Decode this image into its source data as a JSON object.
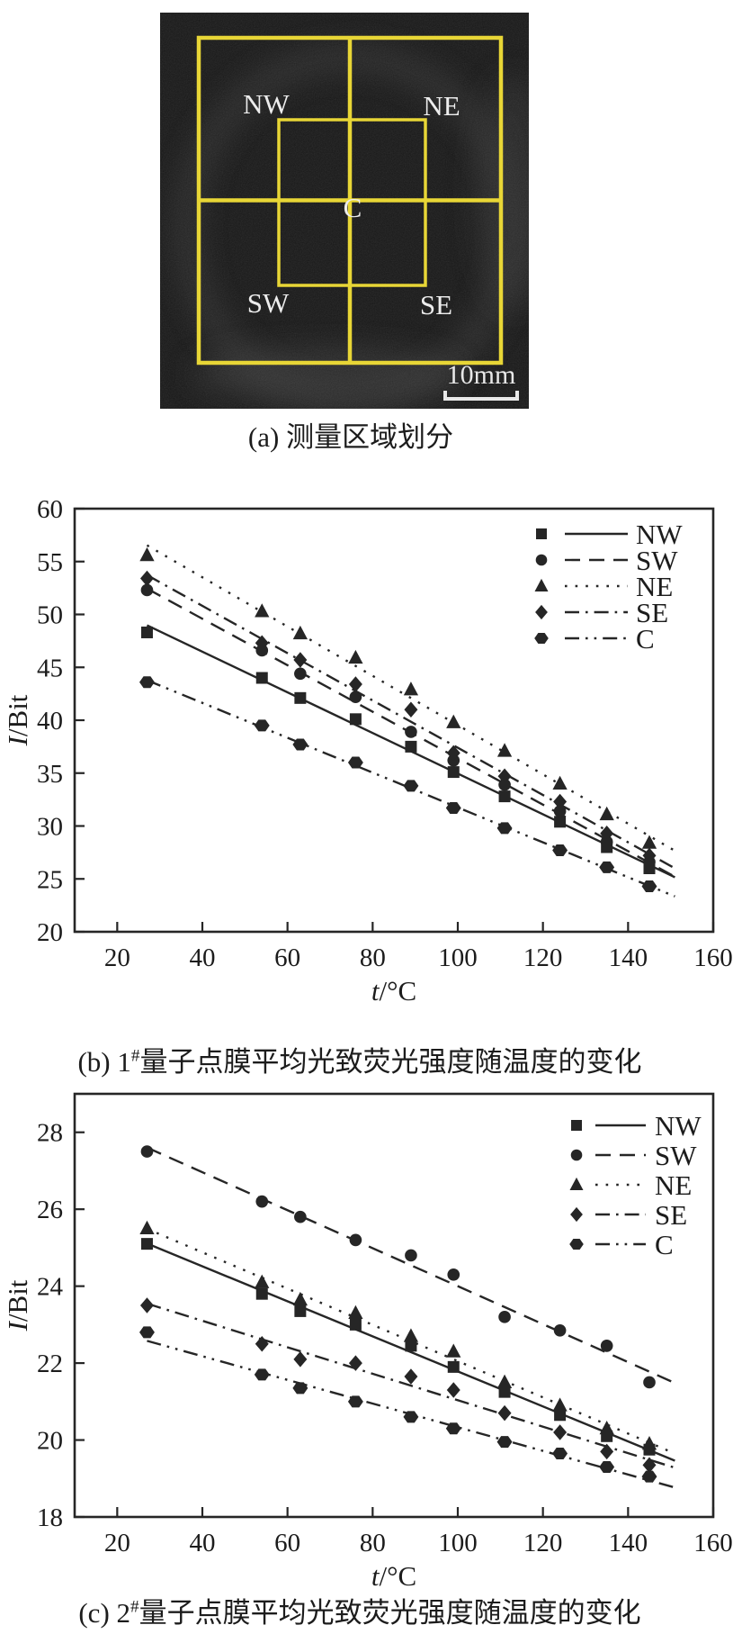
{
  "figure": {
    "panel_a": {
      "caption": "(a) 测量区域划分",
      "regions": [
        {
          "label": "NW"
        },
        {
          "label": "NE"
        },
        {
          "label": "C"
        },
        {
          "label": "SW"
        },
        {
          "label": "SE"
        }
      ],
      "scale_bar_label": "10mm",
      "grid_color": "#e8d636",
      "label_color": "#ededed"
    },
    "panel_b": {
      "caption_prefix": "(b) 1",
      "caption_sup": "#",
      "caption_rest": "量子点膜平均光致荧光强度随温度的变化"
    },
    "panel_c": {
      "caption_prefix": "(c) 2",
      "caption_sup": "#",
      "caption_rest": "量子点膜平均光致荧光强度随温度的变化"
    }
  },
  "chart_data": [
    {
      "id": "b",
      "type": "scatter",
      "title": "",
      "xlabel": "t/°C",
      "ylabel": "I/Bit",
      "xlim": [
        10,
        160
      ],
      "ylim": [
        20,
        60
      ],
      "xticks": [
        20,
        40,
        60,
        80,
        100,
        120,
        140,
        160
      ],
      "yticks": [
        20,
        25,
        30,
        35,
        40,
        45,
        50,
        55,
        60
      ],
      "grid": false,
      "fit_lines": true,
      "legend_position": "top-right",
      "x": [
        27,
        54,
        63,
        76,
        89,
        99,
        111,
        124,
        135,
        145
      ],
      "series": [
        {
          "name": "NW",
          "marker": "square",
          "line": "solid",
          "values": [
            48.3,
            44.0,
            42.1,
            40.1,
            37.5,
            35.1,
            32.8,
            30.4,
            28.0,
            26.0
          ]
        },
        {
          "name": "SW",
          "marker": "circle",
          "line": "dashed",
          "values": [
            52.3,
            46.6,
            44.4,
            42.2,
            38.9,
            36.2,
            33.9,
            31.4,
            28.5,
            26.6
          ]
        },
        {
          "name": "NE",
          "marker": "triangle",
          "line": "dotted",
          "values": [
            55.6,
            50.3,
            48.2,
            45.9,
            42.9,
            39.8,
            37.1,
            34.0,
            31.1,
            28.4
          ]
        },
        {
          "name": "SE",
          "marker": "diamond",
          "line": "dashdot",
          "values": [
            53.4,
            47.3,
            45.7,
            43.4,
            41.0,
            36.9,
            34.7,
            32.3,
            29.3,
            27.2
          ]
        },
        {
          "name": "C",
          "marker": "hexagon",
          "line": "dashdotdot",
          "values": [
            43.6,
            39.5,
            37.7,
            36.0,
            33.8,
            31.7,
            29.8,
            27.7,
            26.1,
            24.3
          ]
        }
      ]
    },
    {
      "id": "c",
      "type": "scatter",
      "title": "",
      "xlabel": "t/°C",
      "ylabel": "I/Bit",
      "xlim": [
        10,
        160
      ],
      "ylim": [
        18,
        29
      ],
      "xticks": [
        20,
        40,
        60,
        80,
        100,
        120,
        140,
        160
      ],
      "yticks": [
        18,
        20,
        22,
        24,
        26,
        28
      ],
      "grid": false,
      "fit_lines": true,
      "legend_position": "top-right",
      "x": [
        27,
        54,
        63,
        76,
        89,
        99,
        111,
        124,
        135,
        145
      ],
      "series": [
        {
          "name": "NW",
          "marker": "square",
          "line": "solid",
          "values": [
            25.1,
            23.8,
            23.35,
            23.0,
            22.45,
            21.9,
            21.25,
            20.65,
            20.1,
            19.75
          ]
        },
        {
          "name": "SW",
          "marker": "circle",
          "line": "dashed",
          "values": [
            27.5,
            26.2,
            25.8,
            25.2,
            24.8,
            24.3,
            23.2,
            22.85,
            22.45,
            21.5
          ]
        },
        {
          "name": "NE",
          "marker": "triangle",
          "line": "dotted",
          "values": [
            25.5,
            24.1,
            23.65,
            23.3,
            22.7,
            22.3,
            21.5,
            20.9,
            20.3,
            19.9
          ]
        },
        {
          "name": "SE",
          "marker": "diamond",
          "line": "dashdot",
          "values": [
            23.5,
            22.5,
            22.1,
            22.0,
            21.65,
            21.3,
            20.7,
            20.2,
            19.7,
            19.35
          ]
        },
        {
          "name": "C",
          "marker": "hexagon",
          "line": "dashdotdot",
          "values": [
            22.8,
            21.7,
            21.35,
            21.0,
            20.6,
            20.3,
            19.95,
            19.65,
            19.3,
            19.05
          ]
        }
      ]
    }
  ]
}
